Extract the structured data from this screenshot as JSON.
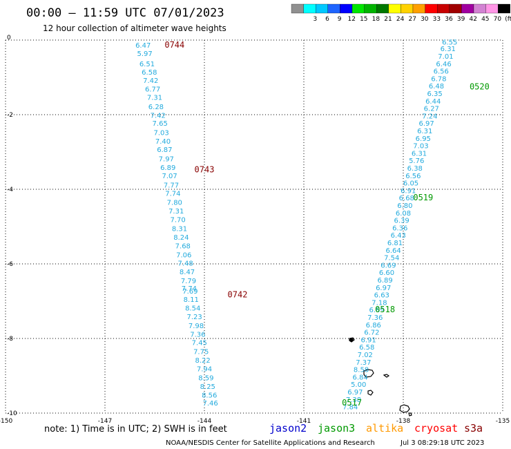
{
  "header": {
    "title": "00:00 — 11:59 UTC 07/01/2023",
    "subtitle": "12 hour collection of altimeter wave heights"
  },
  "legend": {
    "bins": [
      {
        "label": "",
        "color": "#909090"
      },
      {
        "label": "3",
        "color": "#00ffff"
      },
      {
        "label": "6",
        "color": "#00c8ff"
      },
      {
        "label": "9",
        "color": "#1e64ff"
      },
      {
        "label": "12",
        "color": "#0000ff"
      },
      {
        "label": "15",
        "color": "#00e600"
      },
      {
        "label": "18",
        "color": "#00b400"
      },
      {
        "label": "21",
        "color": "#007800"
      },
      {
        "label": "24",
        "color": "#ffff00"
      },
      {
        "label": "27",
        "color": "#ffd200"
      },
      {
        "label": "30",
        "color": "#ffa000"
      },
      {
        "label": "33",
        "color": "#ff0000"
      },
      {
        "label": "36",
        "color": "#c80000"
      },
      {
        "label": "39",
        "color": "#a00000"
      },
      {
        "label": "42",
        "color": "#a000a0"
      },
      {
        "label": "45",
        "color": "#d282d2"
      },
      {
        "label": "70",
        "color": "#ff96e6"
      },
      {
        "label": "(ft)",
        "color": "#000000"
      }
    ]
  },
  "footer": {
    "note": "note:  1) Time is in UTC;  2) SWH is in feet",
    "satellites": [
      {
        "name": "jason2",
        "color": "#0000cc"
      },
      {
        "name": "jason3",
        "color": "#009900"
      },
      {
        "name": "altika",
        "color": "#ff9900"
      },
      {
        "name": "cryosat",
        "color": "#ff0000"
      },
      {
        "name": "s3a",
        "color": "#880000"
      }
    ],
    "credit": "NOAA/NESDIS Center for Satellite Applications and Research",
    "timestamp": "Jul  3 08:29:18 UTC 2023"
  },
  "chart_data": {
    "type": "scatter",
    "title": "00:00 — 11:59 UTC 07/01/2023",
    "subtitle": "12 hour collection of altimeter wave heights",
    "xlabel": "",
    "ylabel": "",
    "xlim": [
      -150,
      -135
    ],
    "ylim": [
      -10,
      0
    ],
    "x_ticks": [
      {
        "value": -150,
        "label": "-150"
      },
      {
        "value": -147,
        "label": "-147"
      },
      {
        "value": -144,
        "label": "-144"
      },
      {
        "value": -141,
        "label": "-141"
      },
      {
        "value": -138,
        "label": "-138"
      },
      {
        "value": -135,
        "label": "-135"
      }
    ],
    "y_ticks": [
      {
        "value": 0,
        "label": "0"
      },
      {
        "value": -2,
        "label": "-2"
      },
      {
        "value": -4,
        "label": "-4"
      },
      {
        "value": -6,
        "label": "-6"
      },
      {
        "value": -8,
        "label": "-8"
      },
      {
        "value": -10,
        "label": "-10"
      }
    ],
    "grid": true,
    "value_color": "#22aadd",
    "series": [
      {
        "name": "s3a",
        "color": "#880000",
        "time_labels": [
          {
            "label": "0744",
            "x": -144.9,
            "y": -0.2
          },
          {
            "label": "0743",
            "x": -144.0,
            "y": -3.55
          },
          {
            "label": "0742",
            "x": -143.0,
            "y": -6.9
          }
        ],
        "points": [
          {
            "x": -145.85,
            "y": -0.2,
            "swh": "6.47"
          },
          {
            "x": -145.8,
            "y": -0.43,
            "swh": "5.97"
          },
          {
            "x": -145.73,
            "y": -0.7,
            "swh": "6.51"
          },
          {
            "x": -145.66,
            "y": -0.93,
            "swh": "6.58"
          },
          {
            "x": -145.62,
            "y": -1.15,
            "swh": "7.42"
          },
          {
            "x": -145.56,
            "y": -1.38,
            "swh": "6.77"
          },
          {
            "x": -145.5,
            "y": -1.6,
            "swh": "7.31"
          },
          {
            "x": -145.46,
            "y": -1.85,
            "swh": "6.28"
          },
          {
            "x": -145.4,
            "y": -2.08,
            "swh": "7.42"
          },
          {
            "x": -145.34,
            "y": -2.3,
            "swh": "7.65"
          },
          {
            "x": -145.3,
            "y": -2.55,
            "swh": "7.03"
          },
          {
            "x": -145.25,
            "y": -2.78,
            "swh": "7.40"
          },
          {
            "x": -145.2,
            "y": -3.0,
            "swh": "6.87"
          },
          {
            "x": -145.15,
            "y": -3.25,
            "swh": "7.97"
          },
          {
            "x": -145.1,
            "y": -3.48,
            "swh": "6.89"
          },
          {
            "x": -145.05,
            "y": -3.7,
            "swh": "7.07"
          },
          {
            "x": -145.0,
            "y": -3.95,
            "swh": "7.77"
          },
          {
            "x": -144.95,
            "y": -4.18,
            "swh": "7.74"
          },
          {
            "x": -144.9,
            "y": -4.42,
            "swh": "7.80"
          },
          {
            "x": -144.85,
            "y": -4.65,
            "swh": "7.31"
          },
          {
            "x": -144.8,
            "y": -4.88,
            "swh": "7.70"
          },
          {
            "x": -144.75,
            "y": -5.12,
            "swh": "8.31"
          },
          {
            "x": -144.7,
            "y": -5.35,
            "swh": "8.24"
          },
          {
            "x": -144.65,
            "y": -5.58,
            "swh": "7.68"
          },
          {
            "x": -144.62,
            "y": -5.82,
            "swh": "7.06"
          },
          {
            "x": -144.57,
            "y": -6.05,
            "swh": "7.48"
          },
          {
            "x": -144.52,
            "y": -6.28,
            "swh": "8.47"
          },
          {
            "x": -144.48,
            "y": -6.52,
            "swh": "7.79"
          },
          {
            "x": -144.46,
            "y": -6.72,
            "swh": "7.74"
          },
          {
            "x": -144.43,
            "y": -6.8,
            "swh": "7.69"
          },
          {
            "x": -144.4,
            "y": -7.02,
            "swh": "8.11"
          },
          {
            "x": -144.35,
            "y": -7.25,
            "swh": "8.54"
          },
          {
            "x": -144.3,
            "y": -7.48,
            "swh": "7.23"
          },
          {
            "x": -144.25,
            "y": -7.72,
            "swh": "7.98"
          },
          {
            "x": -144.2,
            "y": -7.95,
            "swh": "7.36"
          },
          {
            "x": -144.15,
            "y": -8.18,
            "swh": "7.45"
          },
          {
            "x": -144.1,
            "y": -8.42,
            "swh": "7.75"
          },
          {
            "x": -144.05,
            "y": -8.65,
            "swh": "8.22"
          },
          {
            "x": -144.0,
            "y": -8.88,
            "swh": "7.94"
          },
          {
            "x": -143.95,
            "y": -9.12,
            "swh": "8.59"
          },
          {
            "x": -143.9,
            "y": -9.35,
            "swh": "8.25"
          },
          {
            "x": -143.85,
            "y": -9.58,
            "swh": "8.56"
          },
          {
            "x": -143.82,
            "y": -9.8,
            "swh": "7.46"
          }
        ]
      },
      {
        "name": "jason3",
        "color": "#009900",
        "time_labels": [
          {
            "label": "0520",
            "x": -135.7,
            "y": -1.32
          },
          {
            "label": "0519",
            "x": -137.4,
            "y": -4.3
          },
          {
            "label": "0518",
            "x": -138.55,
            "y": -7.3
          },
          {
            "label": "0517",
            "x": -139.55,
            "y": -9.8
          }
        ],
        "points": [
          {
            "x": -136.6,
            "y": -0.12,
            "swh": "6.55"
          },
          {
            "x": -136.65,
            "y": -0.3,
            "swh": "6.31"
          },
          {
            "x": -136.72,
            "y": -0.5,
            "swh": "7.01"
          },
          {
            "x": -136.78,
            "y": -0.7,
            "swh": "6.46"
          },
          {
            "x": -136.86,
            "y": -0.9,
            "swh": "6.56"
          },
          {
            "x": -136.93,
            "y": -1.1,
            "swh": "6.78"
          },
          {
            "x": -137.0,
            "y": -1.3,
            "swh": "6.48"
          },
          {
            "x": -137.05,
            "y": -1.5,
            "swh": "6.35"
          },
          {
            "x": -137.1,
            "y": -1.7,
            "swh": "6.44"
          },
          {
            "x": -137.15,
            "y": -1.9,
            "swh": "6.27"
          },
          {
            "x": -137.2,
            "y": -2.1,
            "swh": "7.24"
          },
          {
            "x": -137.3,
            "y": -2.3,
            "swh": "6.97"
          },
          {
            "x": -137.35,
            "y": -2.5,
            "swh": "6.31"
          },
          {
            "x": -137.4,
            "y": -2.7,
            "swh": "6.95"
          },
          {
            "x": -137.47,
            "y": -2.9,
            "swh": "7.03"
          },
          {
            "x": -137.52,
            "y": -3.1,
            "swh": "6.31"
          },
          {
            "x": -137.6,
            "y": -3.3,
            "swh": "5.76"
          },
          {
            "x": -137.65,
            "y": -3.5,
            "swh": "6.38"
          },
          {
            "x": -137.7,
            "y": -3.7,
            "swh": "6.56"
          },
          {
            "x": -137.77,
            "y": -3.9,
            "swh": "6.05"
          },
          {
            "x": -137.85,
            "y": -4.1,
            "swh": "6.91"
          },
          {
            "x": -137.9,
            "y": -4.3,
            "swh": "6.68"
          },
          {
            "x": -137.95,
            "y": -4.5,
            "swh": "6.80"
          },
          {
            "x": -138.0,
            "y": -4.7,
            "swh": "6.08"
          },
          {
            "x": -138.05,
            "y": -4.9,
            "swh": "6.39"
          },
          {
            "x": -138.1,
            "y": -5.1,
            "swh": "6.36"
          },
          {
            "x": -138.15,
            "y": -5.3,
            "swh": "6.43"
          },
          {
            "x": -138.25,
            "y": -5.5,
            "swh": "6.81"
          },
          {
            "x": -138.3,
            "y": -5.7,
            "swh": "6.64"
          },
          {
            "x": -138.35,
            "y": -5.9,
            "swh": "7.54"
          },
          {
            "x": -138.45,
            "y": -6.1,
            "swh": "6.69"
          },
          {
            "x": -138.5,
            "y": -6.3,
            "swh": "6.60"
          },
          {
            "x": -138.55,
            "y": -6.5,
            "swh": "6.89"
          },
          {
            "x": -138.6,
            "y": -6.7,
            "swh": "6.97"
          },
          {
            "x": -138.65,
            "y": -6.9,
            "swh": "6.63"
          },
          {
            "x": -138.72,
            "y": -7.1,
            "swh": "7.18"
          },
          {
            "x": -138.8,
            "y": -7.3,
            "swh": "6.89"
          },
          {
            "x": -138.85,
            "y": -7.5,
            "swh": "7.36"
          },
          {
            "x": -138.9,
            "y": -7.7,
            "swh": "6.86"
          },
          {
            "x": -138.95,
            "y": -7.9,
            "swh": "6.72"
          },
          {
            "x": -139.05,
            "y": -8.1,
            "swh": "6.91"
          },
          {
            "x": -139.1,
            "y": -8.3,
            "swh": "6.58"
          },
          {
            "x": -139.15,
            "y": -8.5,
            "swh": "7.02"
          },
          {
            "x": -139.2,
            "y": -8.7,
            "swh": "7.37"
          },
          {
            "x": -139.27,
            "y": -8.9,
            "swh": "8.58"
          },
          {
            "x": -139.3,
            "y": -9.1,
            "swh": "6.84"
          },
          {
            "x": -139.35,
            "y": -9.3,
            "swh": "5.00"
          },
          {
            "x": -139.45,
            "y": -9.5,
            "swh": "6.97"
          },
          {
            "x": -139.5,
            "y": -9.7,
            "swh": "7.38"
          },
          {
            "x": -139.6,
            "y": -9.9,
            "swh": "7.84"
          }
        ]
      }
    ]
  }
}
